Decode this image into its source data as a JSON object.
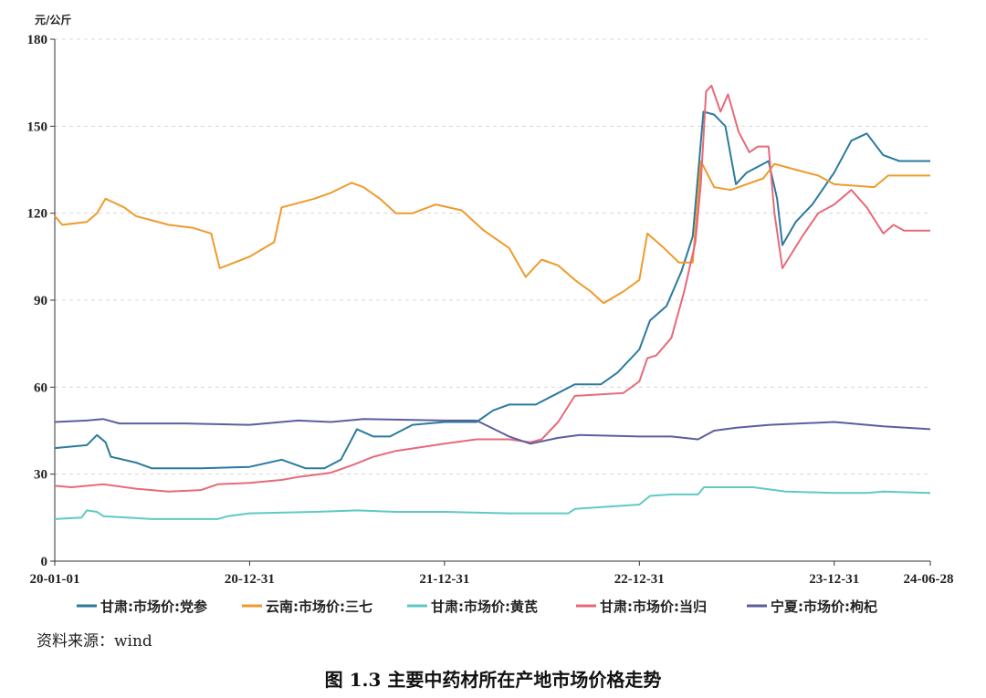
{
  "chart_data": {
    "type": "line",
    "unit_label": "元/公斤",
    "xlabel": "",
    "ylabel": "",
    "ylim": [
      0,
      180
    ],
    "yticks": [
      0,
      30,
      60,
      90,
      120,
      150,
      180
    ],
    "xlim": [
      "2020-01-01",
      "2024-06-28"
    ],
    "xticks": [
      {
        "date": "2020-01-01",
        "label": "20-01-01"
      },
      {
        "date": "2020-12-31",
        "label": "20-12-31"
      },
      {
        "date": "2021-12-31",
        "label": "21-12-31"
      },
      {
        "date": "2022-12-31",
        "label": "22-12-31"
      },
      {
        "date": "2023-12-31",
        "label": "23-12-31"
      },
      {
        "date": "2024-06-28",
        "label": "24-06-28"
      }
    ],
    "grid": "horizontal-dashed",
    "legend_position": "bottom",
    "series": [
      {
        "name": "甘肃:市场价:党参",
        "color": "#2b7a9e",
        "points": [
          [
            "2020-01-01",
            39
          ],
          [
            "2020-03-01",
            40
          ],
          [
            "2020-03-20",
            43.5
          ],
          [
            "2020-04-05",
            41
          ],
          [
            "2020-04-15",
            36
          ],
          [
            "2020-06-01",
            34
          ],
          [
            "2020-07-01",
            32
          ],
          [
            "2020-10-01",
            32
          ],
          [
            "2020-12-31",
            32.5
          ],
          [
            "2021-03-01",
            35
          ],
          [
            "2021-04-15",
            32
          ],
          [
            "2021-05-20",
            32
          ],
          [
            "2021-06-20",
            35
          ],
          [
            "2021-07-20",
            45.5
          ],
          [
            "2021-08-20",
            43
          ],
          [
            "2021-09-20",
            43
          ],
          [
            "2021-11-01",
            47
          ],
          [
            "2022-01-01",
            48
          ],
          [
            "2022-03-01",
            48
          ],
          [
            "2022-04-01",
            52
          ],
          [
            "2022-05-01",
            54
          ],
          [
            "2022-06-20",
            54
          ],
          [
            "2022-08-01",
            58
          ],
          [
            "2022-09-01",
            61
          ],
          [
            "2022-10-20",
            61
          ],
          [
            "2022-11-20",
            65
          ],
          [
            "2022-12-31",
            73
          ],
          [
            "2023-01-20",
            83
          ],
          [
            "2023-02-20",
            88
          ],
          [
            "2023-03-20",
            100
          ],
          [
            "2023-04-10",
            112
          ],
          [
            "2023-04-30",
            155
          ],
          [
            "2023-05-20",
            154
          ],
          [
            "2023-06-10",
            150
          ],
          [
            "2023-06-30",
            130
          ],
          [
            "2023-07-20",
            134
          ],
          [
            "2023-08-10",
            136
          ],
          [
            "2023-08-30",
            138
          ],
          [
            "2023-09-15",
            125
          ],
          [
            "2023-09-25",
            109
          ],
          [
            "2023-10-20",
            117
          ],
          [
            "2023-11-20",
            123
          ],
          [
            "2023-12-31",
            134
          ],
          [
            "2024-02-01",
            145
          ],
          [
            "2024-03-01",
            147.5
          ],
          [
            "2024-04-01",
            140
          ],
          [
            "2024-05-01",
            138
          ],
          [
            "2024-06-28",
            138
          ]
        ]
      },
      {
        "name": "云南:市场价:三七",
        "color": "#ef9a2c",
        "points": [
          [
            "2020-01-01",
            119
          ],
          [
            "2020-01-15",
            116
          ],
          [
            "2020-03-01",
            117
          ],
          [
            "2020-03-20",
            120
          ],
          [
            "2020-04-05",
            125
          ],
          [
            "2020-05-10",
            122
          ],
          [
            "2020-06-01",
            119
          ],
          [
            "2020-08-01",
            116
          ],
          [
            "2020-09-15",
            115
          ],
          [
            "2020-10-20",
            113
          ],
          [
            "2020-11-05",
            101
          ],
          [
            "2020-12-31",
            105
          ],
          [
            "2021-02-15",
            110
          ],
          [
            "2021-03-01",
            122
          ],
          [
            "2021-05-01",
            125
          ],
          [
            "2021-06-01",
            127
          ],
          [
            "2021-07-10",
            130.5
          ],
          [
            "2021-08-01",
            129
          ],
          [
            "2021-09-01",
            125
          ],
          [
            "2021-10-01",
            120
          ],
          [
            "2021-11-01",
            120
          ],
          [
            "2021-12-15",
            123
          ],
          [
            "2022-02-01",
            121
          ],
          [
            "2022-03-15",
            114
          ],
          [
            "2022-05-01",
            108
          ],
          [
            "2022-06-01",
            98
          ],
          [
            "2022-07-01",
            104
          ],
          [
            "2022-08-01",
            102
          ],
          [
            "2022-09-01",
            97
          ],
          [
            "2022-10-01",
            93
          ],
          [
            "2022-10-25",
            89
          ],
          [
            "2022-12-01",
            93
          ],
          [
            "2022-12-31",
            97
          ],
          [
            "2023-01-15",
            113
          ],
          [
            "2023-02-15",
            108
          ],
          [
            "2023-03-15",
            103
          ],
          [
            "2023-04-10",
            103
          ],
          [
            "2023-04-25",
            138
          ],
          [
            "2023-05-20",
            129
          ],
          [
            "2023-06-20",
            128
          ],
          [
            "2023-08-20",
            132
          ],
          [
            "2023-09-10",
            137
          ],
          [
            "2023-10-20",
            135
          ],
          [
            "2023-12-01",
            133
          ],
          [
            "2023-12-31",
            130
          ],
          [
            "2024-03-15",
            129
          ],
          [
            "2024-04-10",
            133
          ],
          [
            "2024-06-28",
            133
          ]
        ]
      },
      {
        "name": "甘肃:市场价:黄芪",
        "color": "#5ecac3",
        "points": [
          [
            "2020-01-01",
            14.5
          ],
          [
            "2020-02-20",
            15
          ],
          [
            "2020-03-01",
            17.5
          ],
          [
            "2020-03-20",
            17
          ],
          [
            "2020-04-01",
            15.5
          ],
          [
            "2020-07-01",
            14.5
          ],
          [
            "2020-11-01",
            14.5
          ],
          [
            "2020-11-20",
            15.5
          ],
          [
            "2020-12-31",
            16.5
          ],
          [
            "2021-05-01",
            17
          ],
          [
            "2021-07-20",
            17.5
          ],
          [
            "2021-10-01",
            17
          ],
          [
            "2022-01-01",
            17
          ],
          [
            "2022-05-01",
            16.5
          ],
          [
            "2022-08-20",
            16.5
          ],
          [
            "2022-09-01",
            18
          ],
          [
            "2022-12-31",
            19.5
          ],
          [
            "2023-01-20",
            22.5
          ],
          [
            "2023-03-01",
            23
          ],
          [
            "2023-04-20",
            23
          ],
          [
            "2023-05-01",
            25.5
          ],
          [
            "2023-08-01",
            25.5
          ],
          [
            "2023-10-01",
            24
          ],
          [
            "2023-12-31",
            23.5
          ],
          [
            "2024-03-01",
            23.5
          ],
          [
            "2024-04-01",
            24
          ],
          [
            "2024-06-28",
            23.5
          ]
        ]
      },
      {
        "name": "甘肃:市场价:当归",
        "color": "#e66a7a",
        "points": [
          [
            "2020-01-01",
            26
          ],
          [
            "2020-02-01",
            25.5
          ],
          [
            "2020-04-01",
            26.5
          ],
          [
            "2020-06-01",
            25
          ],
          [
            "2020-08-01",
            24
          ],
          [
            "2020-10-01",
            24.5
          ],
          [
            "2020-11-01",
            26.5
          ],
          [
            "2020-12-31",
            27
          ],
          [
            "2021-03-01",
            28
          ],
          [
            "2021-04-01",
            29
          ],
          [
            "2021-06-01",
            30.5
          ],
          [
            "2021-07-10",
            33
          ],
          [
            "2021-08-20",
            36
          ],
          [
            "2021-10-01",
            38
          ],
          [
            "2021-12-31",
            40.5
          ],
          [
            "2022-03-01",
            42
          ],
          [
            "2022-05-01",
            42
          ],
          [
            "2022-06-10",
            41
          ],
          [
            "2022-07-01",
            42
          ],
          [
            "2022-08-01",
            48
          ],
          [
            "2022-09-01",
            57
          ],
          [
            "2022-12-01",
            58
          ],
          [
            "2022-12-31",
            62
          ],
          [
            "2023-01-15",
            70
          ],
          [
            "2023-02-01",
            71
          ],
          [
            "2023-03-01",
            77
          ],
          [
            "2023-03-25",
            93
          ],
          [
            "2023-04-15",
            110
          ],
          [
            "2023-04-25",
            130
          ],
          [
            "2023-05-05",
            162
          ],
          [
            "2023-05-15",
            164
          ],
          [
            "2023-06-01",
            155
          ],
          [
            "2023-06-15",
            161
          ],
          [
            "2023-07-05",
            148
          ],
          [
            "2023-07-25",
            141
          ],
          [
            "2023-08-10",
            143
          ],
          [
            "2023-08-30",
            143
          ],
          [
            "2023-09-10",
            120
          ],
          [
            "2023-09-25",
            101
          ],
          [
            "2023-11-01",
            112
          ],
          [
            "2023-12-01",
            120
          ],
          [
            "2023-12-31",
            123
          ],
          [
            "2024-02-01",
            128
          ],
          [
            "2024-03-01",
            122
          ],
          [
            "2024-04-01",
            113
          ],
          [
            "2024-04-20",
            116
          ],
          [
            "2024-05-10",
            114
          ],
          [
            "2024-06-28",
            114
          ]
        ]
      },
      {
        "name": "宁夏:市场价:枸杞",
        "color": "#5b5f9c",
        "points": [
          [
            "2020-01-01",
            48
          ],
          [
            "2020-03-01",
            48.5
          ],
          [
            "2020-04-01",
            49
          ],
          [
            "2020-05-01",
            47.5
          ],
          [
            "2020-09-01",
            47.5
          ],
          [
            "2020-12-31",
            47
          ],
          [
            "2021-04-01",
            48.5
          ],
          [
            "2021-06-01",
            48
          ],
          [
            "2021-08-01",
            49
          ],
          [
            "2021-12-31",
            48.5
          ],
          [
            "2022-03-01",
            48.5
          ],
          [
            "2022-05-01",
            43
          ],
          [
            "2022-06-10",
            40.5
          ],
          [
            "2022-08-01",
            42.5
          ],
          [
            "2022-09-10",
            43.5
          ],
          [
            "2022-12-31",
            43
          ],
          [
            "2023-03-01",
            43
          ],
          [
            "2023-04-20",
            42
          ],
          [
            "2023-05-20",
            45
          ],
          [
            "2023-07-01",
            46
          ],
          [
            "2023-09-01",
            47
          ],
          [
            "2023-12-31",
            48
          ],
          [
            "2024-02-01",
            47.5
          ],
          [
            "2024-04-01",
            46.5
          ],
          [
            "2024-06-28",
            45.5
          ]
        ]
      }
    ]
  },
  "source_note": "资料来源：wind",
  "caption": "图 1.3    主要中药材所在产地市场价格走势"
}
